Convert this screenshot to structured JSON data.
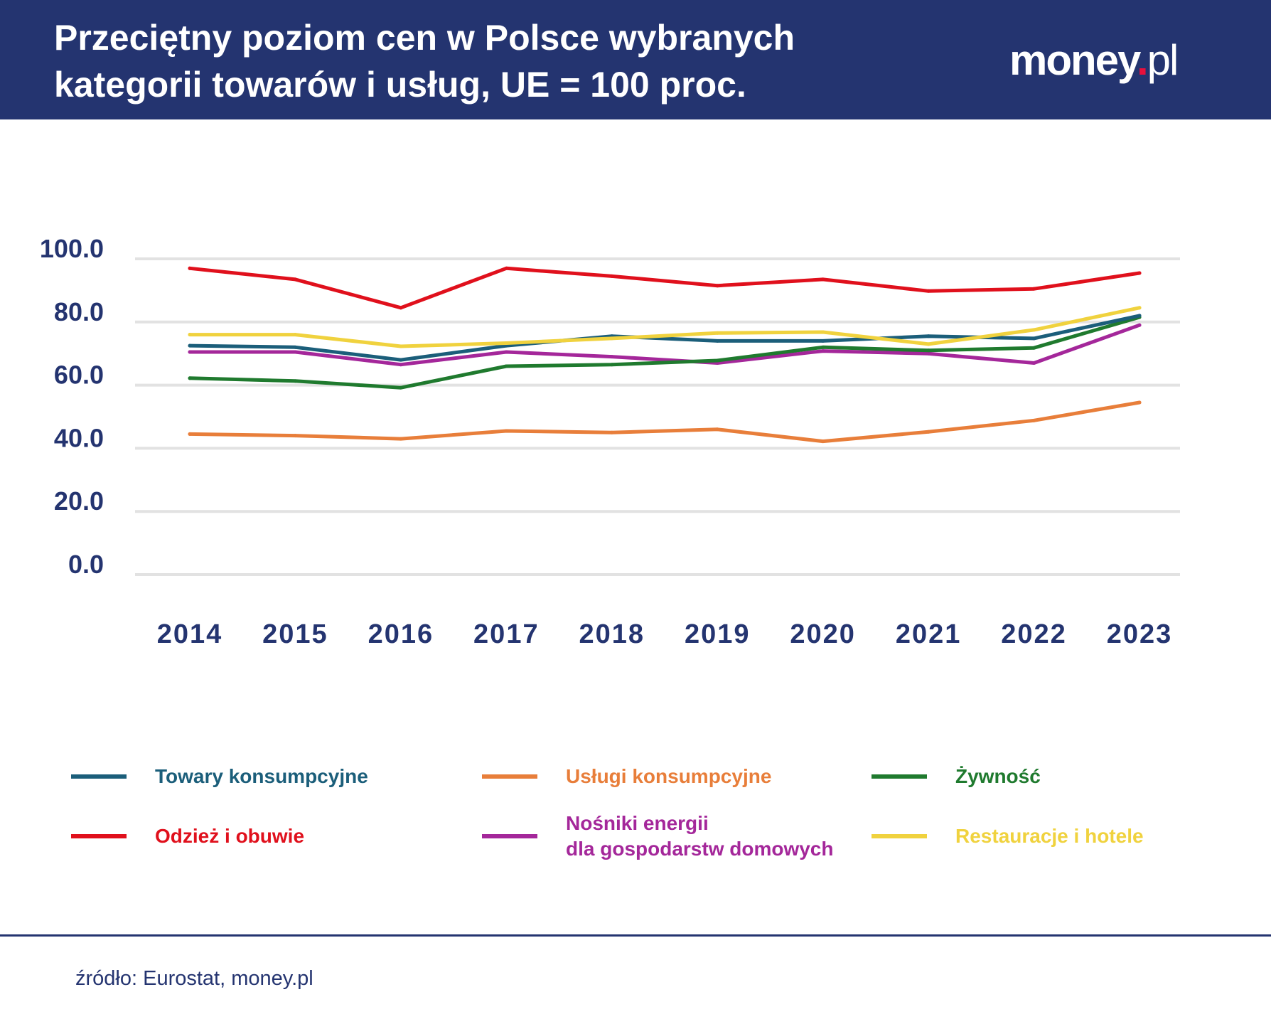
{
  "header": {
    "title_line1": "Przeciętny poziom cen w Polsce wybranych",
    "title_line2": "kategorii towarów i usług, UE = 100 proc.",
    "logo_main": "money",
    "logo_dot": ".",
    "logo_suffix": "pl"
  },
  "colors": {
    "header_bg": "#243470",
    "axis_text": "#243470",
    "grid": "#e2e2e2"
  },
  "chart_data": {
    "type": "line",
    "title": "Przeciętny poziom cen w Polsce wybranych kategorii towarów i usług, UE = 100 proc.",
    "xlabel": "",
    "ylabel": "",
    "ylim": [
      0,
      100
    ],
    "y_ticks": [
      0,
      20,
      40,
      60,
      80,
      100
    ],
    "y_tick_labels": [
      "0.0",
      "20.0",
      "40.0",
      "60.0",
      "80.0",
      "100.0"
    ],
    "categories": [
      "2014",
      "2015",
      "2016",
      "2017",
      "2018",
      "2019",
      "2020",
      "2021",
      "2022",
      "2023"
    ],
    "grid": true,
    "legend_position": "bottom",
    "series": [
      {
        "name": "Towary konsumpcyjne",
        "color": "#1b5e7a",
        "values": [
          72.5,
          72.0,
          68.0,
          72.5,
          75.5,
          74.0,
          74.0,
          75.5,
          74.8,
          82.0
        ]
      },
      {
        "name": "Usługi konsumpcyjne",
        "color": "#e87e3a",
        "values": [
          44.5,
          44.0,
          43.0,
          45.5,
          45.0,
          46.0,
          42.2,
          45.2,
          48.8,
          54.5
        ]
      },
      {
        "name": "Żywność",
        "color": "#1f7a2e",
        "values": [
          62.2,
          61.3,
          59.2,
          66.0,
          66.5,
          67.8,
          72.0,
          71.0,
          71.8,
          81.5
        ]
      },
      {
        "name": "Odzież i obuwie",
        "color": "#e0101c",
        "values": [
          97.0,
          93.5,
          84.5,
          97.0,
          94.5,
          91.5,
          93.5,
          89.8,
          90.5,
          95.5
        ]
      },
      {
        "name": "Nośniki energii\ndla gospodarstw domowych",
        "color": "#a4279a",
        "values": [
          70.5,
          70.5,
          66.5,
          70.5,
          69.0,
          67.0,
          70.8,
          70.0,
          67.0,
          79.0
        ]
      },
      {
        "name": "Restauracje i hotele",
        "color": "#f0d23e",
        "values": [
          76.0,
          76.0,
          72.3,
          73.3,
          74.8,
          76.5,
          76.8,
          73.0,
          77.5,
          84.5
        ]
      }
    ]
  },
  "legend": [
    {
      "label": "Towary konsumpcyjne",
      "color": "#1b5e7a"
    },
    {
      "label": "Usługi konsumpcyjne",
      "color": "#e87e3a"
    },
    {
      "label": "Żywność",
      "color": "#1f7a2e"
    },
    {
      "label": "Odzież i obuwie",
      "color": "#e0101c"
    },
    {
      "label": "Nośniki energii\ndla gospodarstw domowych",
      "color": "#a4279a"
    },
    {
      "label": "Restauracje i hotele",
      "color": "#f0d23e"
    }
  ],
  "footer": {
    "source": "źródło: Eurostat, money.pl"
  }
}
